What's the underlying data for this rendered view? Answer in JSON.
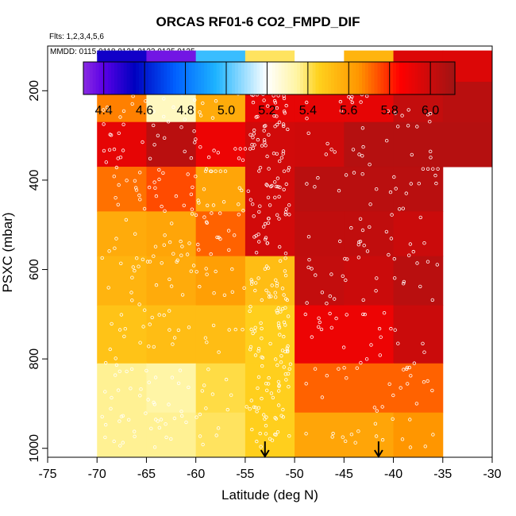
{
  "chart_data": {
    "type": "heatmap",
    "title": "ORCAS RF01-6 CO2_FMPD_DIF",
    "flights_note": "Flts: 1,2,3,4,5,6",
    "mmdd_note": "MMDD: 0115,0118,0121,0123,0125,0125",
    "xlabel": "Latitude (deg N)",
    "ylabel": "PSXC (mbar)",
    "xlim": [
      -75,
      -30
    ],
    "ylim": [
      1020,
      100
    ],
    "x_ticks": [
      -75,
      -70,
      -65,
      -60,
      -55,
      -50,
      -45,
      -40,
      -35,
      -30
    ],
    "x_tick_labels": [
      "-75",
      "-70",
      "-65",
      "-60",
      "-55",
      "-50",
      "-45",
      "-40",
      "-35",
      "-30"
    ],
    "y_ticks": [
      200,
      400,
      600,
      800,
      1000
    ],
    "y_tick_labels": [
      "200",
      "400",
      "600",
      "800",
      "1000"
    ],
    "colorbar": {
      "range": [
        4.3,
        6.12
      ],
      "ticks": [
        4.4,
        4.6,
        4.8,
        5.0,
        5.2,
        5.4,
        5.6,
        5.8,
        6.0
      ],
      "tick_labels": [
        "4.4",
        "4.6",
        "4.8",
        "5.0",
        "5.2",
        "5.4",
        "5.6",
        "5.8",
        "6.0"
      ],
      "stops": [
        {
          "value": 4.3,
          "color": "#8a2be2"
        },
        {
          "value": 4.4,
          "color": "#5a00e6"
        },
        {
          "value": 4.55,
          "color": "#0000c0"
        },
        {
          "value": 4.75,
          "color": "#0060ff"
        },
        {
          "value": 4.95,
          "color": "#1eb4ff"
        },
        {
          "value": 5.2,
          "color": "#ffffff"
        },
        {
          "value": 5.35,
          "color": "#fff4a0"
        },
        {
          "value": 5.45,
          "color": "#ffd21e"
        },
        {
          "value": 5.65,
          "color": "#ff9600"
        },
        {
          "value": 5.85,
          "color": "#ff0000"
        },
        {
          "value": 6.12,
          "color": "#a01414"
        }
      ]
    },
    "lat_bins": [
      -70,
      -65,
      -60,
      -55,
      -50,
      -45,
      -40,
      -35,
      -30
    ],
    "pressure_bins": [
      [
        110,
        180
      ],
      [
        180,
        270
      ],
      [
        270,
        370
      ],
      [
        370,
        470
      ],
      [
        470,
        570
      ],
      [
        570,
        680
      ],
      [
        680,
        810
      ],
      [
        810,
        920
      ],
      [
        920,
        1020
      ]
    ],
    "cell_values": [
      [
        4.52,
        4.35,
        4.98,
        5.4,
        5.2,
        5.55,
        5.95,
        5.95
      ],
      [
        5.68,
        5.3,
        5.58,
        5.92,
        5.92,
        5.92,
        6.02,
        6.05
      ],
      [
        5.92,
        6.05,
        5.9,
        5.98,
        5.99,
        6.06,
        6.06,
        6.06
      ],
      [
        5.7,
        5.75,
        5.6,
        5.98,
        6.05,
        6.05,
        6.05,
        null
      ],
      [
        5.58,
        5.6,
        5.72,
        5.98,
        6.03,
        6.03,
        6.0,
        null
      ],
      [
        5.55,
        5.58,
        5.62,
        5.52,
        6.02,
        6.0,
        6.05,
        null
      ],
      [
        5.5,
        5.52,
        5.52,
        5.46,
        5.9,
        5.9,
        6.0,
        null
      ],
      [
        5.36,
        5.34,
        5.42,
        5.46,
        5.72,
        5.72,
        5.72,
        null
      ],
      [
        5.36,
        5.36,
        5.4,
        5.46,
        5.6,
        5.6,
        5.65,
        null
      ]
    ],
    "profile_markers_lat": [
      -53,
      -41.5
    ],
    "sample_tracks": [
      {
        "lat_range": [
          -69,
          -50
        ],
        "pressure": 180
      },
      {
        "lat_range": [
          -48,
          -46
        ],
        "pressure": 180
      },
      {
        "lat_range": [
          -40,
          -35.5
        ],
        "pressure": 180
      },
      {
        "lat_range": [
          -65,
          -63
        ],
        "pressure": 185
      },
      {
        "lat_range": [
          -59,
          -57
        ],
        "pressure": 380
      },
      {
        "lat_range": [
          -37,
          -35.5
        ],
        "pressure": 375
      },
      {
        "lat_range": [
          -56,
          -54.5
        ],
        "pressure": 330
      }
    ]
  }
}
